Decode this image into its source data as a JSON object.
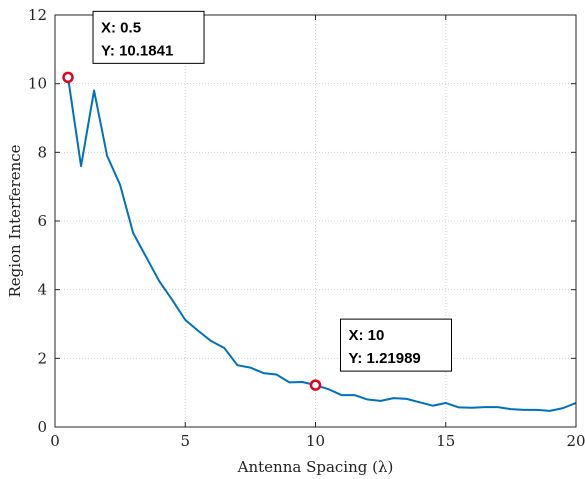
{
  "chart_data": {
    "type": "line",
    "xlabel": "Antenna Spacing (λ)",
    "ylabel": "Region Interference",
    "xlim": [
      0,
      20
    ],
    "ylim": [
      0,
      12
    ],
    "xticks": [
      0,
      5,
      10,
      15,
      20
    ],
    "yticks": [
      0,
      2,
      4,
      6,
      8,
      10,
      12
    ],
    "grid": true,
    "series": [
      {
        "color": "#0072BD",
        "x": [
          0.5,
          1,
          1.5,
          2,
          2.5,
          3,
          3.5,
          4,
          4.5,
          5,
          5.5,
          6,
          6.5,
          7,
          7.5,
          8,
          8.5,
          9,
          9.5,
          10,
          10.5,
          11,
          11.5,
          12,
          12.5,
          13,
          13.5,
          14,
          14.5,
          15,
          15.5,
          16,
          16.5,
          17,
          17.5,
          18,
          18.5,
          19,
          19.5,
          20
        ],
        "y": [
          10.1841,
          7.6,
          9.8,
          7.9,
          7.05,
          5.65,
          4.95,
          4.25,
          3.7,
          3.12,
          2.8,
          2.5,
          2.3,
          1.8,
          1.73,
          1.57,
          1.53,
          1.3,
          1.31,
          1.21989,
          1.1,
          0.93,
          0.93,
          0.8,
          0.76,
          0.84,
          0.82,
          0.72,
          0.62,
          0.7,
          0.57,
          0.56,
          0.58,
          0.58,
          0.52,
          0.5,
          0.5,
          0.47,
          0.55,
          0.7
        ]
      }
    ],
    "annotations": [
      {
        "x": 0.5,
        "y": 10.1841,
        "x_text": "X: 0.5",
        "y_text": "Y: 10.1841",
        "marker_color": "#e8001a"
      },
      {
        "x": 10,
        "y": 1.21989,
        "x_text": "X: 10",
        "y_text": "Y: 1.21989",
        "marker_color": "#e8001a"
      }
    ]
  }
}
